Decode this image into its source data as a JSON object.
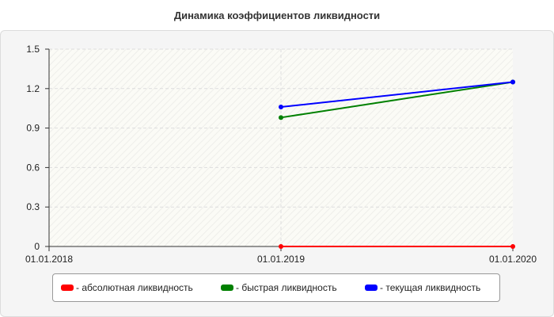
{
  "chart_data": {
    "type": "line",
    "title": "Динамика коэффициентов ликвидности",
    "xlabel": "",
    "ylabel": "",
    "x": [
      "01.01.2018",
      "01.01.2019",
      "01.01.2020"
    ],
    "ylim": [
      0,
      1.5
    ],
    "yticks": [
      "0",
      "0.3",
      "0.6",
      "0.9",
      "1.2",
      "1.5"
    ],
    "grid": true,
    "legend_position": "bottom",
    "series": [
      {
        "name": "- абсолютная ликвидность",
        "color": "#ff0000",
        "values": [
          null,
          0.0,
          0.0
        ]
      },
      {
        "name": "- быстрая ликвидность",
        "color": "#008000",
        "values": [
          null,
          0.98,
          1.25
        ]
      },
      {
        "name": "- текущая ликвидность",
        "color": "#0000ff",
        "values": [
          null,
          1.06,
          1.25
        ]
      }
    ]
  }
}
